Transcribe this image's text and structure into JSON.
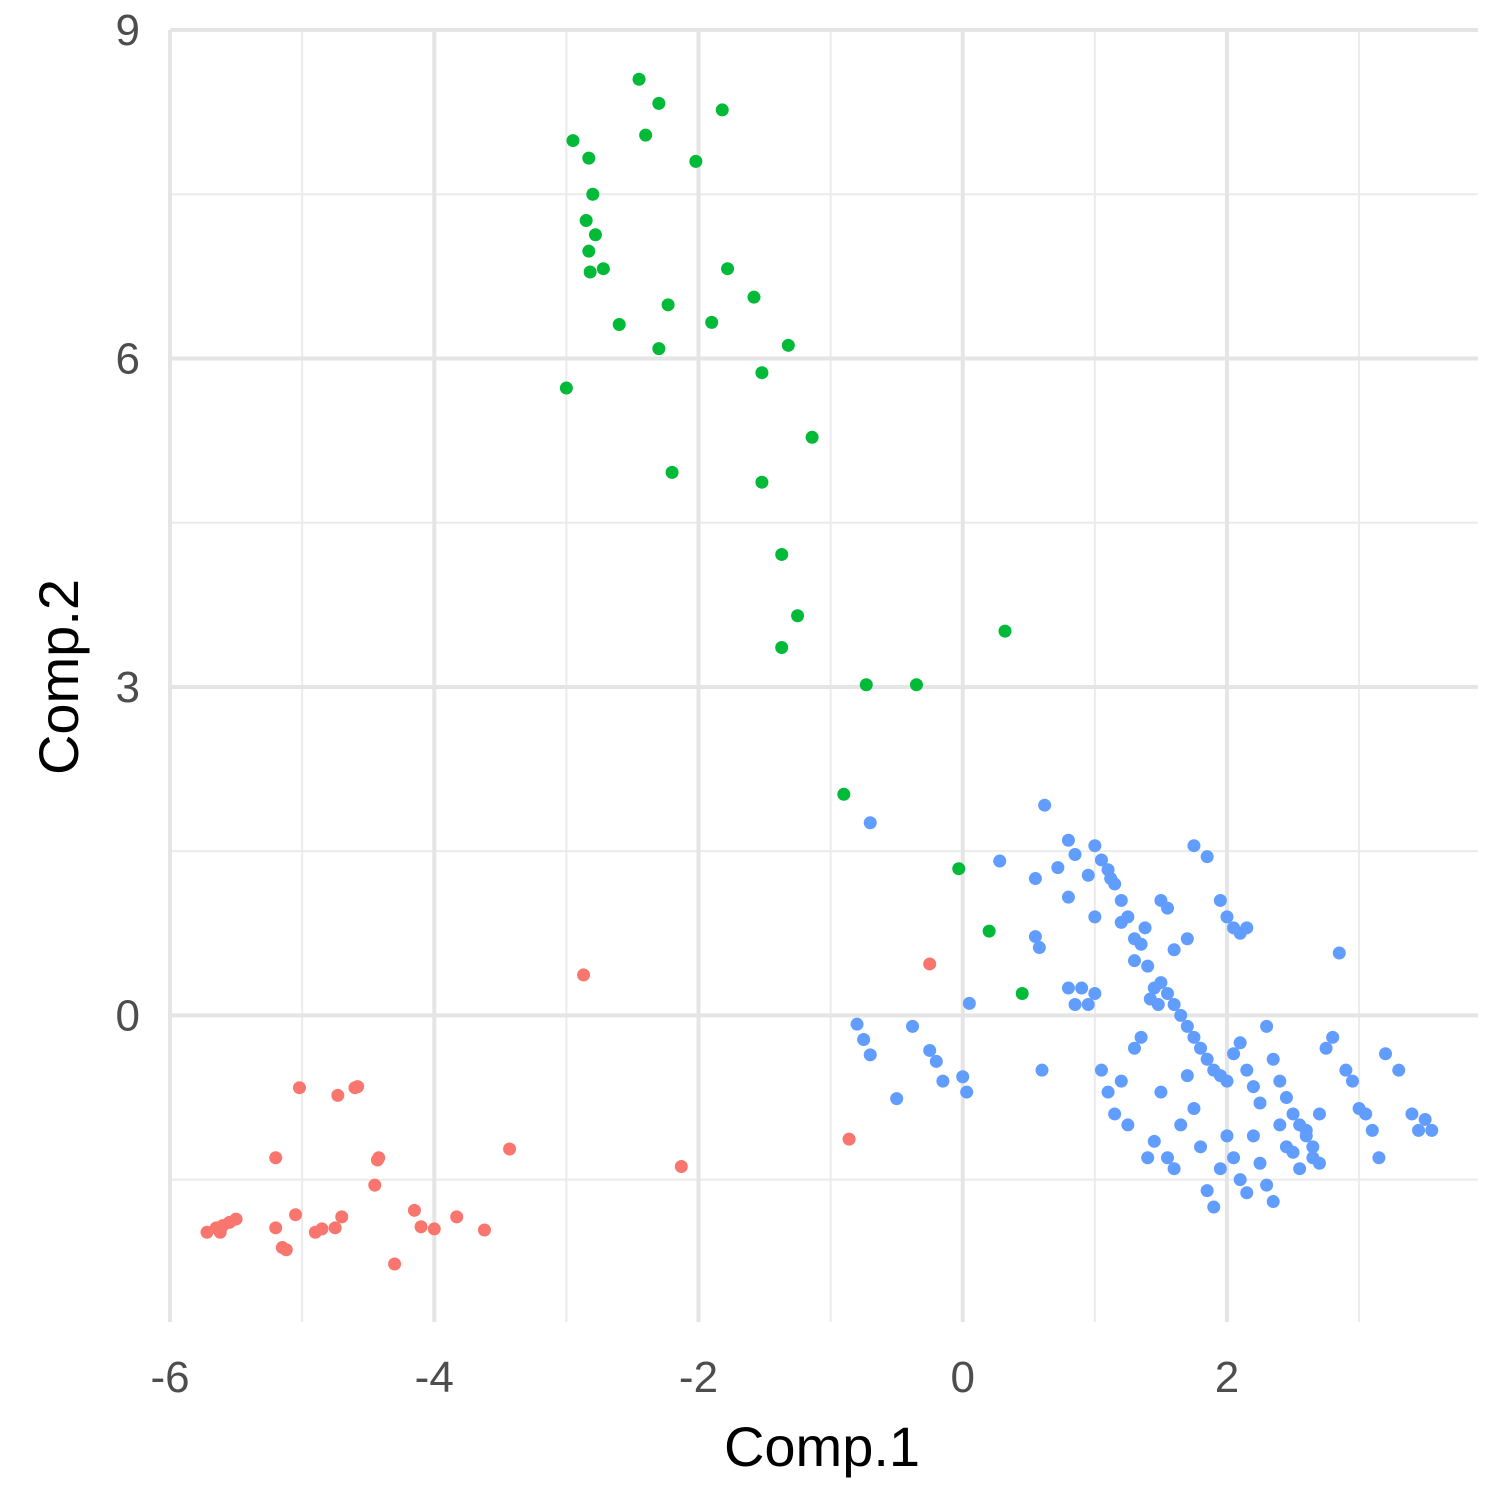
{
  "chart_data": {
    "type": "scatter",
    "title": "",
    "xlabel": "Comp.1",
    "ylabel": "Comp.2",
    "xlim": [
      -6.0,
      3.9
    ],
    "ylim": [
      -2.8,
      9.0
    ],
    "x_ticks": [
      -6,
      -4,
      -2,
      0,
      2
    ],
    "y_ticks": [
      0,
      3,
      6,
      9
    ],
    "x_minor_ticks": [
      -5,
      -3,
      -1,
      1,
      3
    ],
    "y_minor_ticks": [
      -1.5,
      1.5,
      4.5,
      7.5
    ],
    "grid": true,
    "legend": "none",
    "series": [
      {
        "color": "#F8766D",
        "points": [
          [
            -5.72,
            -1.98
          ],
          [
            -5.65,
            -1.94
          ],
          [
            -5.6,
            -1.92
          ],
          [
            -5.55,
            -1.89
          ],
          [
            -5.5,
            -1.86
          ],
          [
            -5.62,
            -1.98
          ],
          [
            -5.2,
            -1.94
          ],
          [
            -5.15,
            -2.12
          ],
          [
            -5.05,
            -1.82
          ],
          [
            -4.9,
            -1.98
          ],
          [
            -4.85,
            -1.95
          ],
          [
            -4.75,
            -1.94
          ],
          [
            -4.7,
            -1.84
          ],
          [
            -5.2,
            -1.3
          ],
          [
            -5.02,
            -0.66
          ],
          [
            -4.73,
            -0.73
          ],
          [
            -4.6,
            -0.66
          ],
          [
            -4.58,
            -0.65
          ],
          [
            -4.43,
            -1.32
          ],
          [
            -4.42,
            -1.3
          ],
          [
            -4.45,
            -1.55
          ],
          [
            -4.3,
            -2.27
          ],
          [
            -4.15,
            -1.78
          ],
          [
            -4.1,
            -1.93
          ],
          [
            -4.0,
            -1.95
          ],
          [
            -3.83,
            -1.84
          ],
          [
            -3.62,
            -1.96
          ],
          [
            -3.43,
            -1.22
          ],
          [
            -2.87,
            0.37
          ],
          [
            -2.13,
            -1.38
          ],
          [
            -0.86,
            -1.13
          ],
          [
            -0.25,
            0.47
          ],
          [
            -5.12,
            -2.14
          ]
        ]
      },
      {
        "color": "#00BA38",
        "points": [
          [
            -2.45,
            8.55
          ],
          [
            -2.3,
            8.33
          ],
          [
            -1.82,
            8.27
          ],
          [
            -2.4,
            8.04
          ],
          [
            -2.95,
            7.99
          ],
          [
            -2.83,
            7.83
          ],
          [
            -2.02,
            7.8
          ],
          [
            -2.8,
            7.5
          ],
          [
            -2.85,
            7.26
          ],
          [
            -2.78,
            7.13
          ],
          [
            -2.83,
            6.98
          ],
          [
            -2.72,
            6.82
          ],
          [
            -2.82,
            6.79
          ],
          [
            -1.78,
            6.82
          ],
          [
            -1.58,
            6.56
          ],
          [
            -2.23,
            6.49
          ],
          [
            -1.9,
            6.33
          ],
          [
            -2.6,
            6.31
          ],
          [
            -1.32,
            6.12
          ],
          [
            -2.3,
            6.09
          ],
          [
            -1.52,
            5.87
          ],
          [
            -3.0,
            5.73
          ],
          [
            -1.14,
            5.28
          ],
          [
            -2.2,
            4.96
          ],
          [
            -1.52,
            4.87
          ],
          [
            -1.37,
            4.21
          ],
          [
            -1.25,
            3.65
          ],
          [
            -1.37,
            3.36
          ],
          [
            0.32,
            3.51
          ],
          [
            -0.73,
            3.02
          ],
          [
            -0.35,
            3.02
          ],
          [
            -0.9,
            2.02
          ],
          [
            -0.03,
            1.34
          ],
          [
            0.2,
            0.77
          ],
          [
            0.45,
            0.2
          ]
        ]
      },
      {
        "color": "#619CFF",
        "points": [
          [
            -0.7,
            1.76
          ],
          [
            0.62,
            1.92
          ],
          [
            0.28,
            1.41
          ],
          [
            0.55,
            1.25
          ],
          [
            0.72,
            1.35
          ],
          [
            0.8,
            1.6
          ],
          [
            0.85,
            1.47
          ],
          [
            0.95,
            1.28
          ],
          [
            1.0,
            1.55
          ],
          [
            1.05,
            1.42
          ],
          [
            1.1,
            1.33
          ],
          [
            1.15,
            1.2
          ],
          [
            1.2,
            1.05
          ],
          [
            1.25,
            0.9
          ],
          [
            1.3,
            0.7
          ],
          [
            1.35,
            0.65
          ],
          [
            1.4,
            0.45
          ],
          [
            1.45,
            0.25
          ],
          [
            1.5,
            1.05
          ],
          [
            1.55,
            0.98
          ],
          [
            1.6,
            0.6
          ],
          [
            1.7,
            0.7
          ],
          [
            1.75,
            1.55
          ],
          [
            1.85,
            1.45
          ],
          [
            1.95,
            1.05
          ],
          [
            2.0,
            0.9
          ],
          [
            2.05,
            0.8
          ],
          [
            2.1,
            0.75
          ],
          [
            2.15,
            0.8
          ],
          [
            1.5,
            0.3
          ],
          [
            1.55,
            0.2
          ],
          [
            1.6,
            0.1
          ],
          [
            1.65,
            0.0
          ],
          [
            1.7,
            -0.1
          ],
          [
            1.75,
            -0.2
          ],
          [
            1.8,
            -0.3
          ],
          [
            1.85,
            -0.4
          ],
          [
            1.9,
            -0.5
          ],
          [
            1.95,
            -0.55
          ],
          [
            2.0,
            -0.6
          ],
          [
            2.05,
            -0.35
          ],
          [
            2.1,
            -0.25
          ],
          [
            2.15,
            -0.5
          ],
          [
            2.2,
            -0.65
          ],
          [
            2.25,
            -0.8
          ],
          [
            2.3,
            -0.1
          ],
          [
            2.35,
            -0.4
          ],
          [
            2.4,
            -0.6
          ],
          [
            2.45,
            -0.75
          ],
          [
            2.5,
            -0.9
          ],
          [
            2.55,
            -1.0
          ],
          [
            2.6,
            -1.1
          ],
          [
            2.65,
            -1.2
          ],
          [
            2.7,
            -0.9
          ],
          [
            2.75,
            -0.3
          ],
          [
            2.8,
            -0.2
          ],
          [
            2.85,
            0.57
          ],
          [
            2.9,
            -0.5
          ],
          [
            2.95,
            -0.6
          ],
          [
            3.0,
            -0.85
          ],
          [
            3.05,
            -0.9
          ],
          [
            3.1,
            -1.05
          ],
          [
            3.15,
            -1.3
          ],
          [
            3.2,
            -0.35
          ],
          [
            3.3,
            -0.5
          ],
          [
            3.4,
            -0.9
          ],
          [
            3.45,
            -1.05
          ],
          [
            3.5,
            -0.95
          ],
          [
            3.55,
            -1.05
          ],
          [
            1.05,
            -0.5
          ],
          [
            1.1,
            -0.7
          ],
          [
            1.15,
            -0.9
          ],
          [
            1.2,
            -0.6
          ],
          [
            1.25,
            -1.0
          ],
          [
            1.3,
            -0.3
          ],
          [
            1.35,
            -0.2
          ],
          [
            1.4,
            -1.3
          ],
          [
            1.45,
            -1.15
          ],
          [
            1.5,
            -0.7
          ],
          [
            1.55,
            -1.3
          ],
          [
            1.6,
            -1.4
          ],
          [
            1.65,
            -1.0
          ],
          [
            1.7,
            -0.55
          ],
          [
            1.75,
            -0.85
          ],
          [
            1.8,
            -1.2
          ],
          [
            1.85,
            -1.6
          ],
          [
            1.9,
            -1.75
          ],
          [
            1.95,
            -1.4
          ],
          [
            2.0,
            -1.1
          ],
          [
            2.05,
            -1.3
          ],
          [
            2.1,
            -1.5
          ],
          [
            2.15,
            -1.62
          ],
          [
            2.2,
            -1.1
          ],
          [
            2.25,
            -1.35
          ],
          [
            2.3,
            -1.55
          ],
          [
            2.35,
            -1.7
          ],
          [
            2.4,
            -1.0
          ],
          [
            2.45,
            -1.2
          ],
          [
            2.5,
            -1.25
          ],
          [
            2.55,
            -1.4
          ],
          [
            2.6,
            -1.05
          ],
          [
            2.65,
            -1.3
          ],
          [
            2.7,
            -1.35
          ],
          [
            -0.8,
            -0.08
          ],
          [
            -0.75,
            -0.22
          ],
          [
            -0.7,
            -0.36
          ],
          [
            -0.5,
            -0.76
          ],
          [
            -0.38,
            -0.1
          ],
          [
            -0.25,
            -0.32
          ],
          [
            -0.2,
            -0.42
          ],
          [
            -0.15,
            -0.6
          ],
          [
            0.0,
            -0.56
          ],
          [
            0.03,
            -0.7
          ],
          [
            0.05,
            0.11
          ],
          [
            0.6,
            -0.5
          ],
          [
            0.8,
            0.25
          ],
          [
            0.85,
            0.1
          ],
          [
            0.9,
            0.25
          ],
          [
            0.95,
            0.1
          ],
          [
            1.0,
            0.2
          ],
          [
            0.55,
            0.72
          ],
          [
            0.58,
            0.62
          ],
          [
            0.8,
            1.08
          ],
          [
            1.0,
            0.9
          ],
          [
            1.12,
            1.25
          ],
          [
            1.2,
            0.85
          ],
          [
            1.3,
            0.5
          ],
          [
            1.38,
            0.8
          ],
          [
            1.42,
            0.15
          ],
          [
            1.48,
            0.1
          ]
        ]
      }
    ]
  }
}
